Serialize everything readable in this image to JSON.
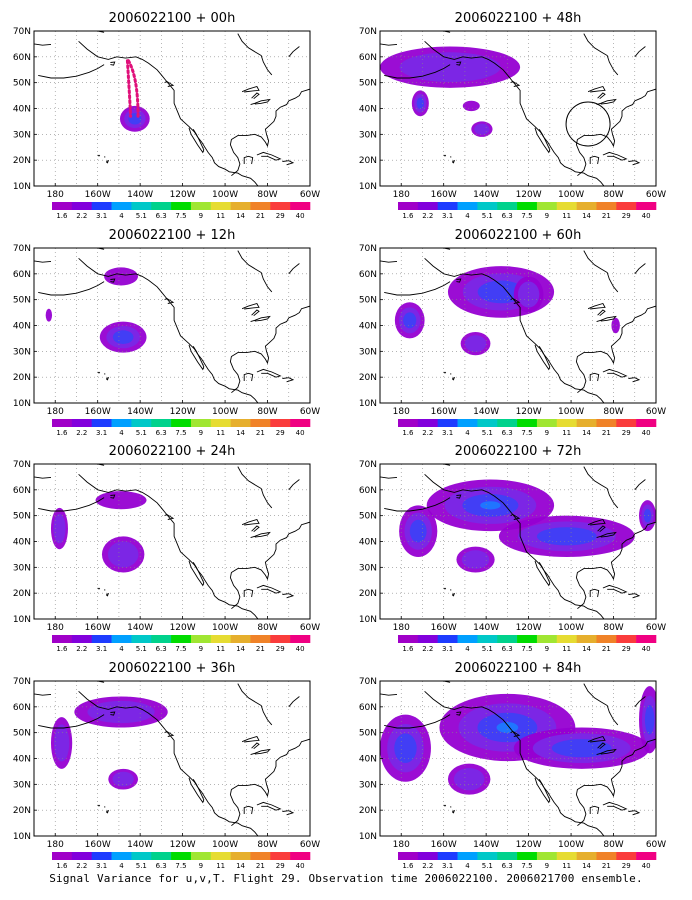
{
  "figure": {
    "caption": "Signal Variance for u,v,T. Flight 29. Observation time 2006022100. 2006021700 ensemble.",
    "lat_labels": [
      "70N",
      "60N",
      "50N",
      "40N",
      "30N",
      "20N",
      "10N"
    ],
    "lon_labels": [
      "180",
      "160W",
      "140W",
      "120W",
      "100W",
      "80W",
      "60W"
    ],
    "colorbar": {
      "levels": [
        "1.6",
        "2.2",
        "3.1",
        "4",
        "5.1",
        "6.3",
        "7.5",
        "9",
        "11",
        "14",
        "21",
        "29",
        "40"
      ],
      "colors": [
        "#a000c8",
        "#8200dc",
        "#1e3cff",
        "#00a0ff",
        "#00c8c8",
        "#00d28c",
        "#00dc00",
        "#a0e632",
        "#e6dc32",
        "#e6af2d",
        "#f08228",
        "#fa3c3c",
        "#f00082"
      ]
    },
    "panels": [
      {
        "title": "2006022100 + 00h",
        "flight_track": true,
        "observation_circle": false
      },
      {
        "title": "2006022100 + 48h",
        "flight_track": false,
        "observation_circle": true
      },
      {
        "title": "2006022100 + 12h",
        "flight_track": false,
        "observation_circle": false
      },
      {
        "title": "2006022100 + 60h",
        "flight_track": false,
        "observation_circle": false
      },
      {
        "title": "2006022100 + 24h",
        "flight_track": false,
        "observation_circle": false
      },
      {
        "title": "2006022100 + 72h",
        "flight_track": false,
        "observation_circle": false
      },
      {
        "title": "2006022100 + 36h",
        "flight_track": false,
        "observation_circle": false
      },
      {
        "title": "2006022100 + 84h",
        "flight_track": false,
        "observation_circle": false
      }
    ]
  }
}
